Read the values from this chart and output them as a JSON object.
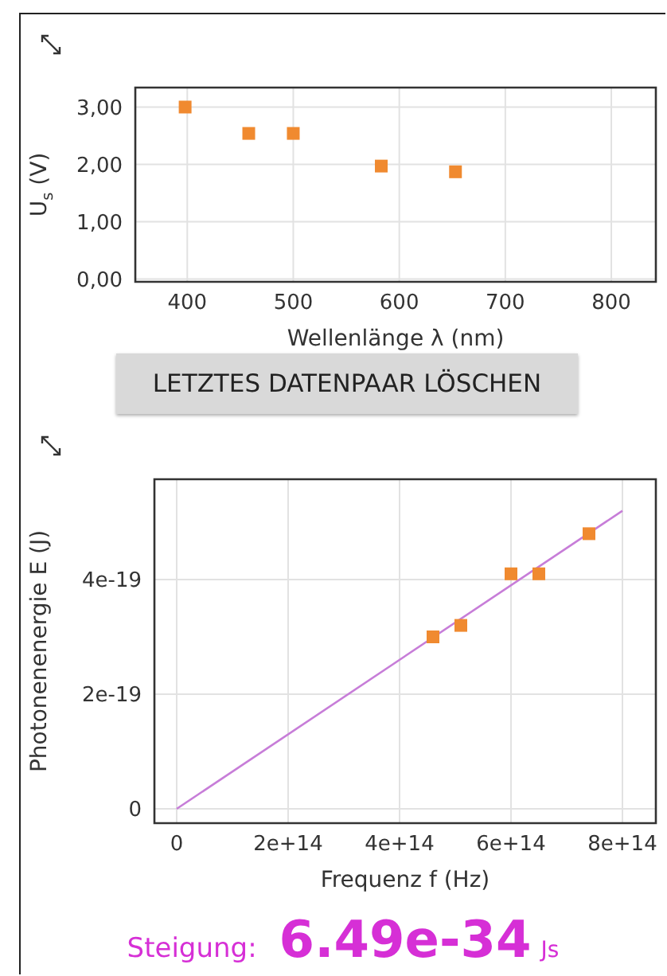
{
  "chart_data": [
    {
      "type": "scatter",
      "xlabel": "Wellenlänge λ (nm)",
      "ylabel": "U$_{s}$ (V)",
      "x": [
        398,
        458,
        500,
        583,
        653
      ],
      "values": [
        3.0,
        2.54,
        2.54,
        1.97,
        1.87
      ],
      "color": "#f08a30",
      "marker": "square",
      "xlim": [
        351,
        842
      ],
      "ylim": [
        -0.05,
        3.34
      ],
      "xticks": [
        400,
        500,
        600,
        700,
        800
      ],
      "yticks": [
        {
          "value": 0,
          "label": "0,00"
        },
        {
          "value": 1,
          "label": "1,00"
        },
        {
          "value": 2,
          "label": "2,00"
        },
        {
          "value": 3,
          "label": "3,00"
        }
      ],
      "grid": true,
      "annotations": [
        "LETZTES DATENPAAR LÖSCHEN"
      ]
    },
    {
      "type": "scatter",
      "xlabel": "Frequenz f (Hz)",
      "ylabel": "Photonenenergie E (J)",
      "xlim": [
        -40000000000000.0,
        860000000000000.0
      ],
      "ylim": [
        -2.5e-20,
        5.75e-19
      ],
      "xticks": [
        0,
        {
          "value": 200000000000000.0,
          "label": "2e+14"
        },
        {
          "value": 400000000000000.0,
          "label": "4e+14"
        },
        {
          "value": 600000000000000.0,
          "label": "6e+14"
        },
        {
          "value": 800000000000000.0,
          "label": "8e+14"
        }
      ],
      "yticks": [
        0,
        {
          "value": 2e-19,
          "label": "2e-19"
        },
        {
          "value": 4e-19,
          "label": "4e-19"
        }
      ],
      "grid": true,
      "series": [
        {
          "marker": "square",
          "color": "#f08a30",
          "x": [
            460000000000000.0,
            510000000000000.0,
            600000000000000.0,
            650000000000000.0,
            740000000000000.0
          ],
          "values": [
            3e-19,
            3.2e-19,
            4.1e-19,
            4.1e-19,
            4.8e-19
          ]
        },
        {
          "type": "line",
          "marker": "none",
          "color": "#c77dd8",
          "x": [
            0,
            800000000000000.0
          ],
          "values": [
            0,
            5.2e-19
          ]
        }
      ],
      "annotations": [
        "Steigung:",
        "6.49e-34",
        "Js"
      ]
    }
  ]
}
